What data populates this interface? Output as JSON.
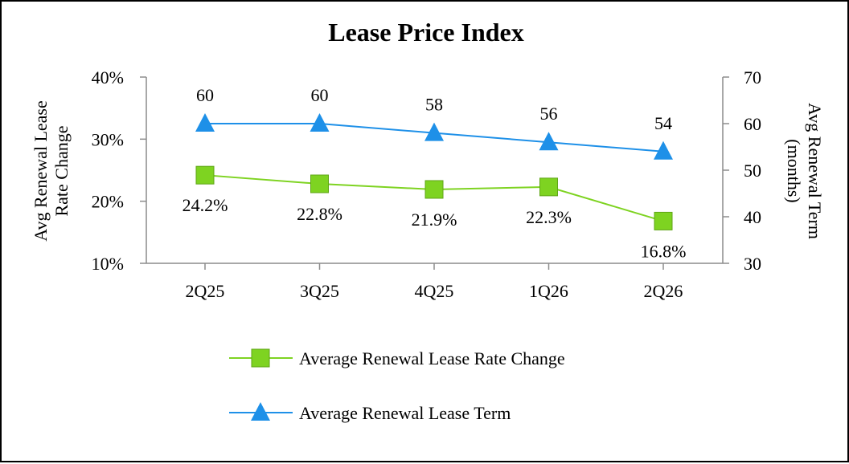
{
  "chart_data": {
    "type": "line",
    "title": "Lease Price Index",
    "categories": [
      "2Q25",
      "3Q25",
      "4Q25",
      "1Q26",
      "2Q26"
    ],
    "series": [
      {
        "name": "Average Renewal Lease Rate Change",
        "axis": "left",
        "values": [
          24.2,
          22.8,
          21.9,
          22.3,
          16.8
        ],
        "labels": [
          "24.2%",
          "22.8%",
          "21.9%",
          "22.3%",
          "16.8%"
        ],
        "color": "#7ED321",
        "marker": "square"
      },
      {
        "name": "Average Renewal Lease Term",
        "axis": "right",
        "values": [
          60,
          60,
          58,
          56,
          54
        ],
        "labels": [
          "60",
          "60",
          "58",
          "56",
          "54"
        ],
        "color": "#1E90E8",
        "marker": "triangle"
      }
    ],
    "y_left": {
      "label": "Avg Renewal Lease Rate Change",
      "label_lines": [
        "Avg Renewal Lease",
        "Rate Change"
      ],
      "ticks": [
        10,
        20,
        30,
        40
      ],
      "tick_labels": [
        "10%",
        "20%",
        "30%",
        "40%"
      ],
      "lim": [
        10,
        40
      ]
    },
    "y_right": {
      "label": "Avg Renewal Term (months)",
      "label_lines": [
        "Avg Renewal Term",
        "(months)"
      ],
      "ticks": [
        30,
        40,
        50,
        60,
        70
      ],
      "tick_labels": [
        "30",
        "40",
        "50",
        "60",
        "70"
      ],
      "lim": [
        30,
        70
      ]
    },
    "grid": false,
    "legend": "bottom-center"
  }
}
